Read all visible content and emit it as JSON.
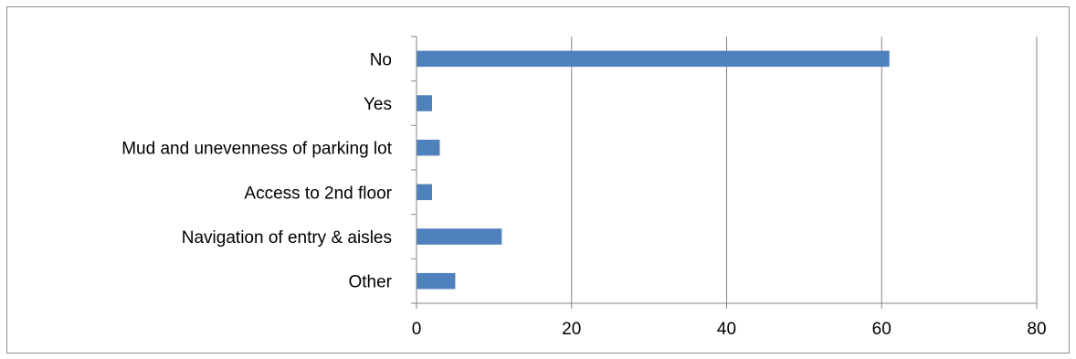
{
  "chart_data": {
    "type": "bar",
    "orientation": "horizontal",
    "categories": [
      "No",
      "Yes",
      "Mud and unevenness of parking lot",
      "Access to 2nd floor",
      "Navigation of entry & aisles",
      "Other"
    ],
    "values": [
      61,
      2,
      3,
      2,
      11,
      5
    ],
    "xlim": [
      0,
      80
    ],
    "xticks": [
      0,
      20,
      40,
      60,
      80
    ],
    "title": "",
    "xlabel": "",
    "ylabel": "",
    "grid": "vertical",
    "legend": "none",
    "bar_color": "#4f81bd",
    "grid_color": "#868686"
  }
}
